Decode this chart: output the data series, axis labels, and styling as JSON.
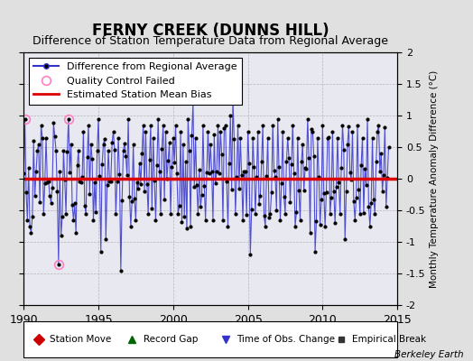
{
  "title": "FERNY CREEK (DUNNS HILL)",
  "subtitle": "Difference of Station Temperature Data from Regional Average",
  "ylabel": "Monthly Temperature Anomaly Difference (°C)",
  "xlim": [
    1990,
    2015
  ],
  "ylim": [
    -2,
    2
  ],
  "yticks": [
    -2,
    -1.5,
    -1,
    -0.5,
    0,
    0.5,
    1,
    1.5,
    2
  ],
  "ytick_labels": [
    "-2",
    "-1.5",
    "-1",
    "-0.5",
    "0",
    "0.5",
    "1",
    "1.5",
    "2"
  ],
  "xticks": [
    1990,
    1995,
    2000,
    2005,
    2010,
    2015
  ],
  "mean_bias": 0.0,
  "bias_color": "#dd0000",
  "line_color": "#3333cc",
  "marker_color": "#000000",
  "qc_fail_color": "#ff80c0",
  "background_color": "#e0e0e0",
  "plot_bg_color": "#e8e8f0",
  "watermark": "Berkeley Earth",
  "grid_color": "#aaaaaa",
  "grid_style": "--",
  "legend_fontsize": 8,
  "title_fontsize": 12,
  "subtitle_fontsize": 9
}
